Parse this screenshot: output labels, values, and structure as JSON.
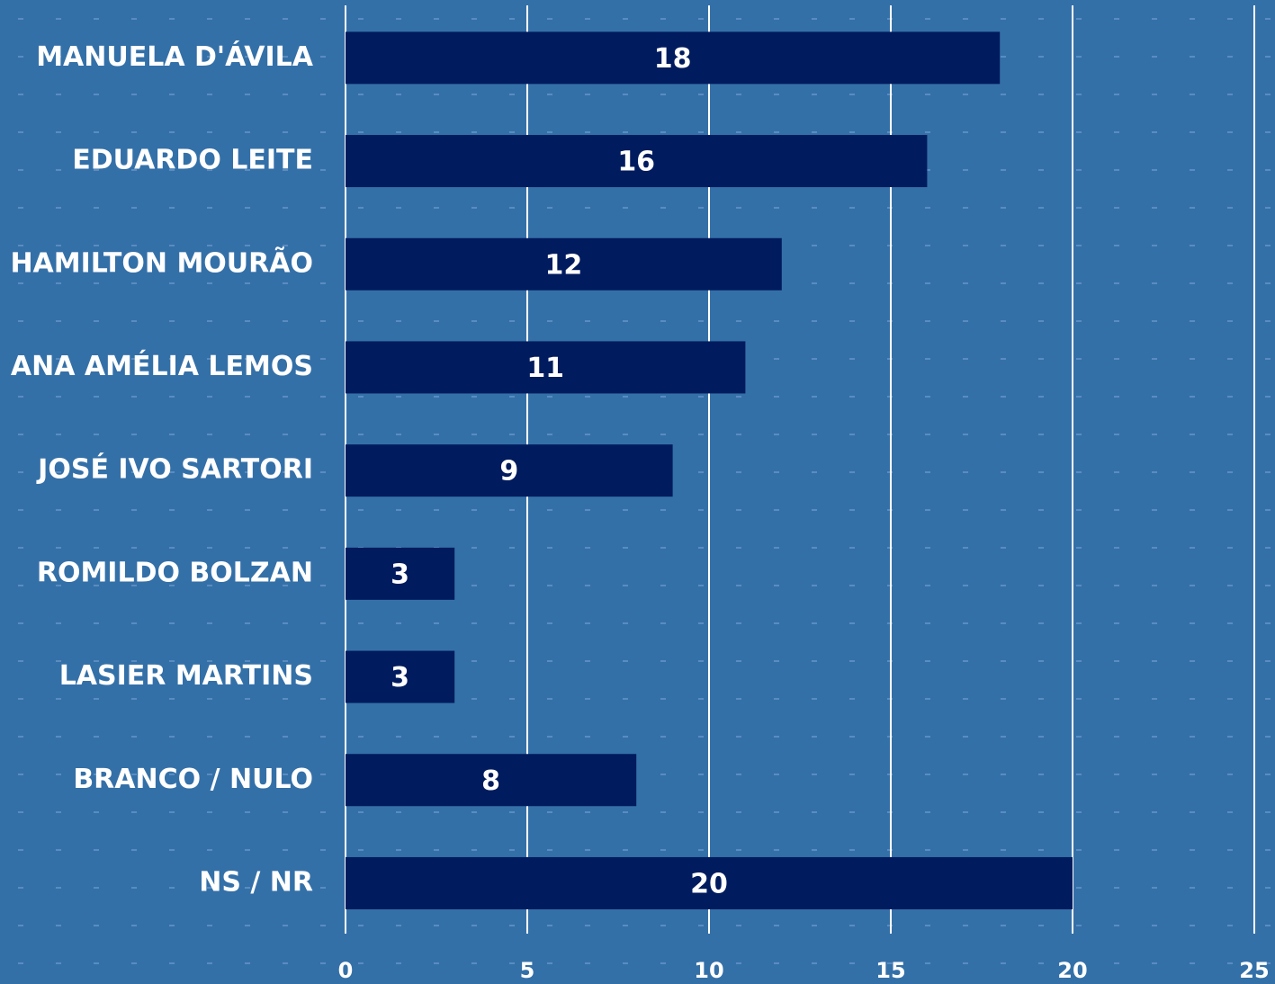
{
  "chart_data": {
    "type": "hbar",
    "categories": [
      "MANUELA D'ÁVILA",
      "EDUARDO LEITE",
      "HAMILTON MOURÃO",
      "ANA AMÉLIA LEMOS",
      "JOSÉ IVO SARTORI",
      "ROMILDO BOLZAN",
      "LASIER MARTINS",
      "BRANCO / NULO",
      "NS / NR"
    ],
    "values": [
      18,
      16,
      12,
      11,
      9,
      3,
      3,
      8,
      20
    ],
    "color": "#001b5e",
    "xlim": [
      0,
      25
    ],
    "xticks": [
      0,
      5,
      10,
      15,
      20,
      25
    ],
    "grid": true
  }
}
